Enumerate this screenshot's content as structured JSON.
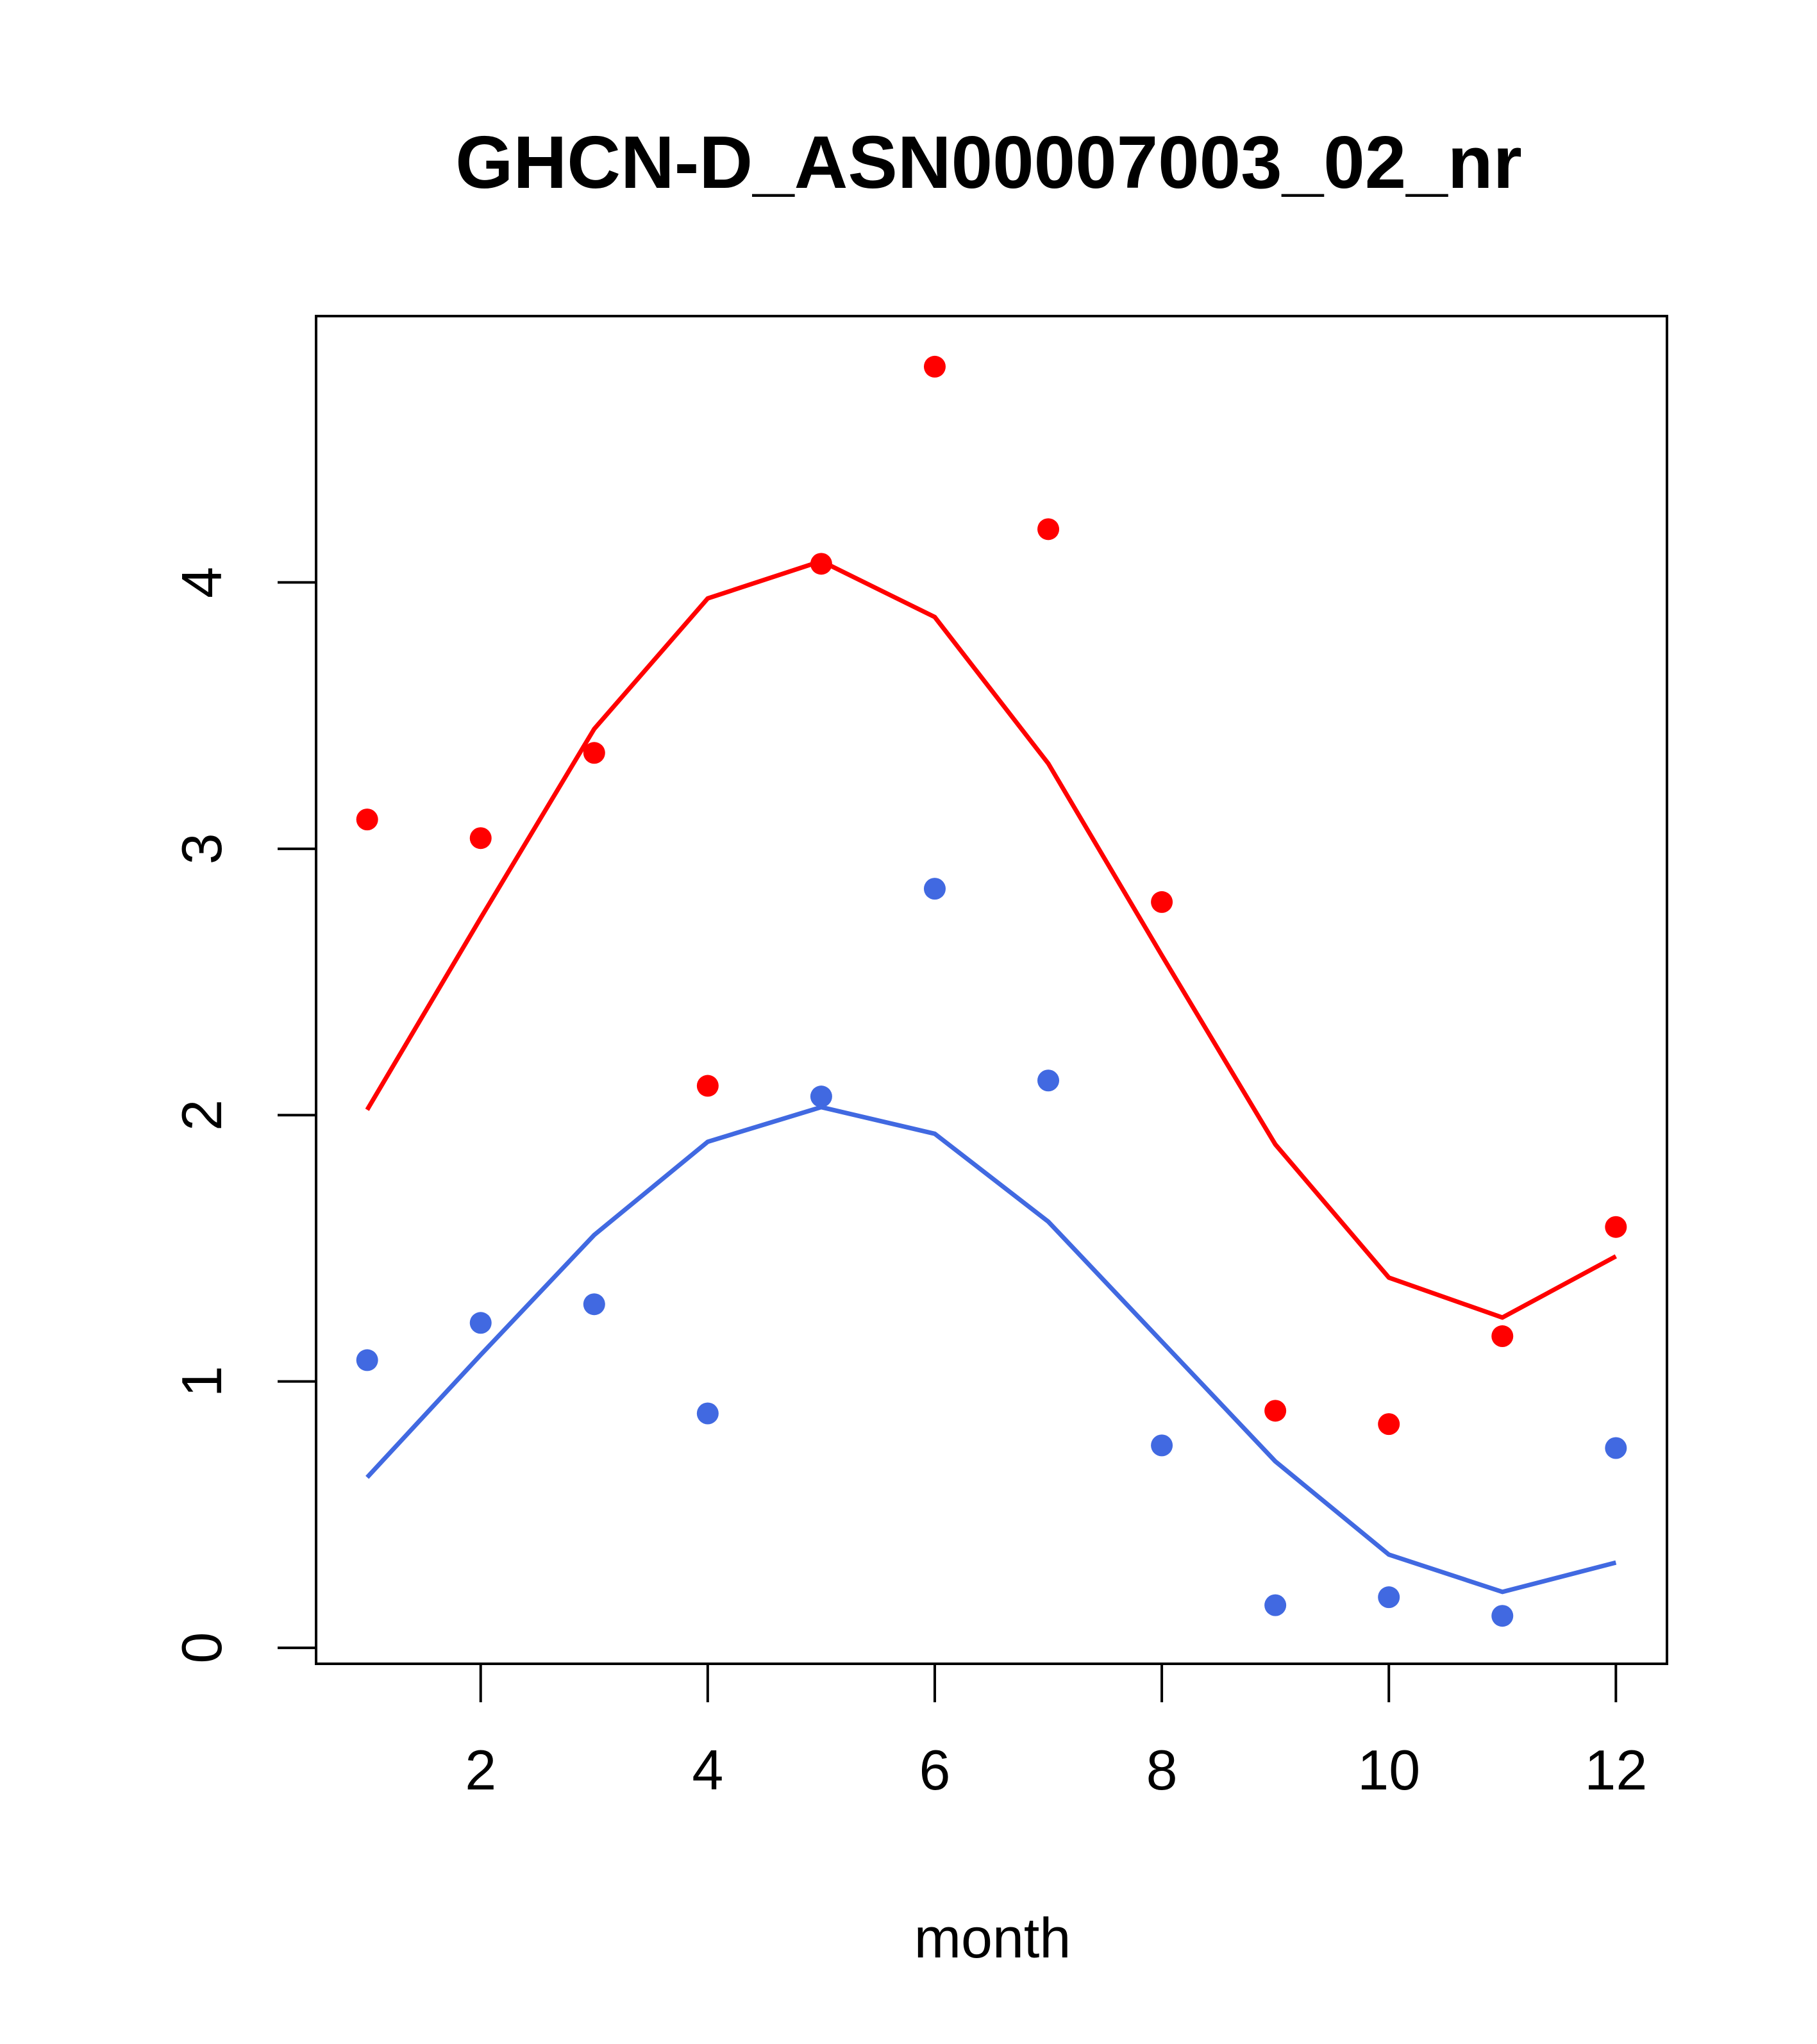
{
  "chart_data": {
    "type": "scatter",
    "title": "GHCN-D_ASN00007003_02_nr",
    "xlabel": "month",
    "ylabel": "",
    "xlim": [
      0.55,
      12.45
    ],
    "ylim": [
      -0.06,
      5.0
    ],
    "xticks": [
      2,
      4,
      6,
      8,
      10,
      12
    ],
    "yticks": [
      0,
      1,
      2,
      3,
      4
    ],
    "grid": false,
    "legend": "none",
    "x": [
      1,
      2,
      3,
      4,
      5,
      6,
      7,
      8,
      9,
      10,
      11,
      12
    ],
    "series": [
      {
        "kind": "points",
        "color": "#ff0000",
        "values": [
          3.11,
          3.04,
          3.36,
          2.11,
          4.07,
          4.81,
          4.2,
          2.8,
          0.89,
          0.84,
          1.17,
          1.58
        ]
      },
      {
        "kind": "line",
        "color": "#ff0000",
        "values": [
          2.02,
          2.74,
          3.45,
          3.94,
          4.08,
          3.87,
          3.32,
          2.6,
          1.89,
          1.39,
          1.24,
          1.47
        ]
      },
      {
        "kind": "points",
        "color": "#4169e1",
        "values": [
          1.08,
          1.22,
          1.29,
          0.88,
          2.07,
          2.85,
          2.13,
          0.76,
          0.16,
          0.19,
          0.12,
          0.75
        ]
      },
      {
        "kind": "line",
        "color": "#4169e1",
        "values": [
          0.64,
          1.1,
          1.55,
          1.9,
          2.03,
          1.93,
          1.6,
          1.15,
          0.7,
          0.35,
          0.21,
          0.32
        ]
      }
    ]
  }
}
